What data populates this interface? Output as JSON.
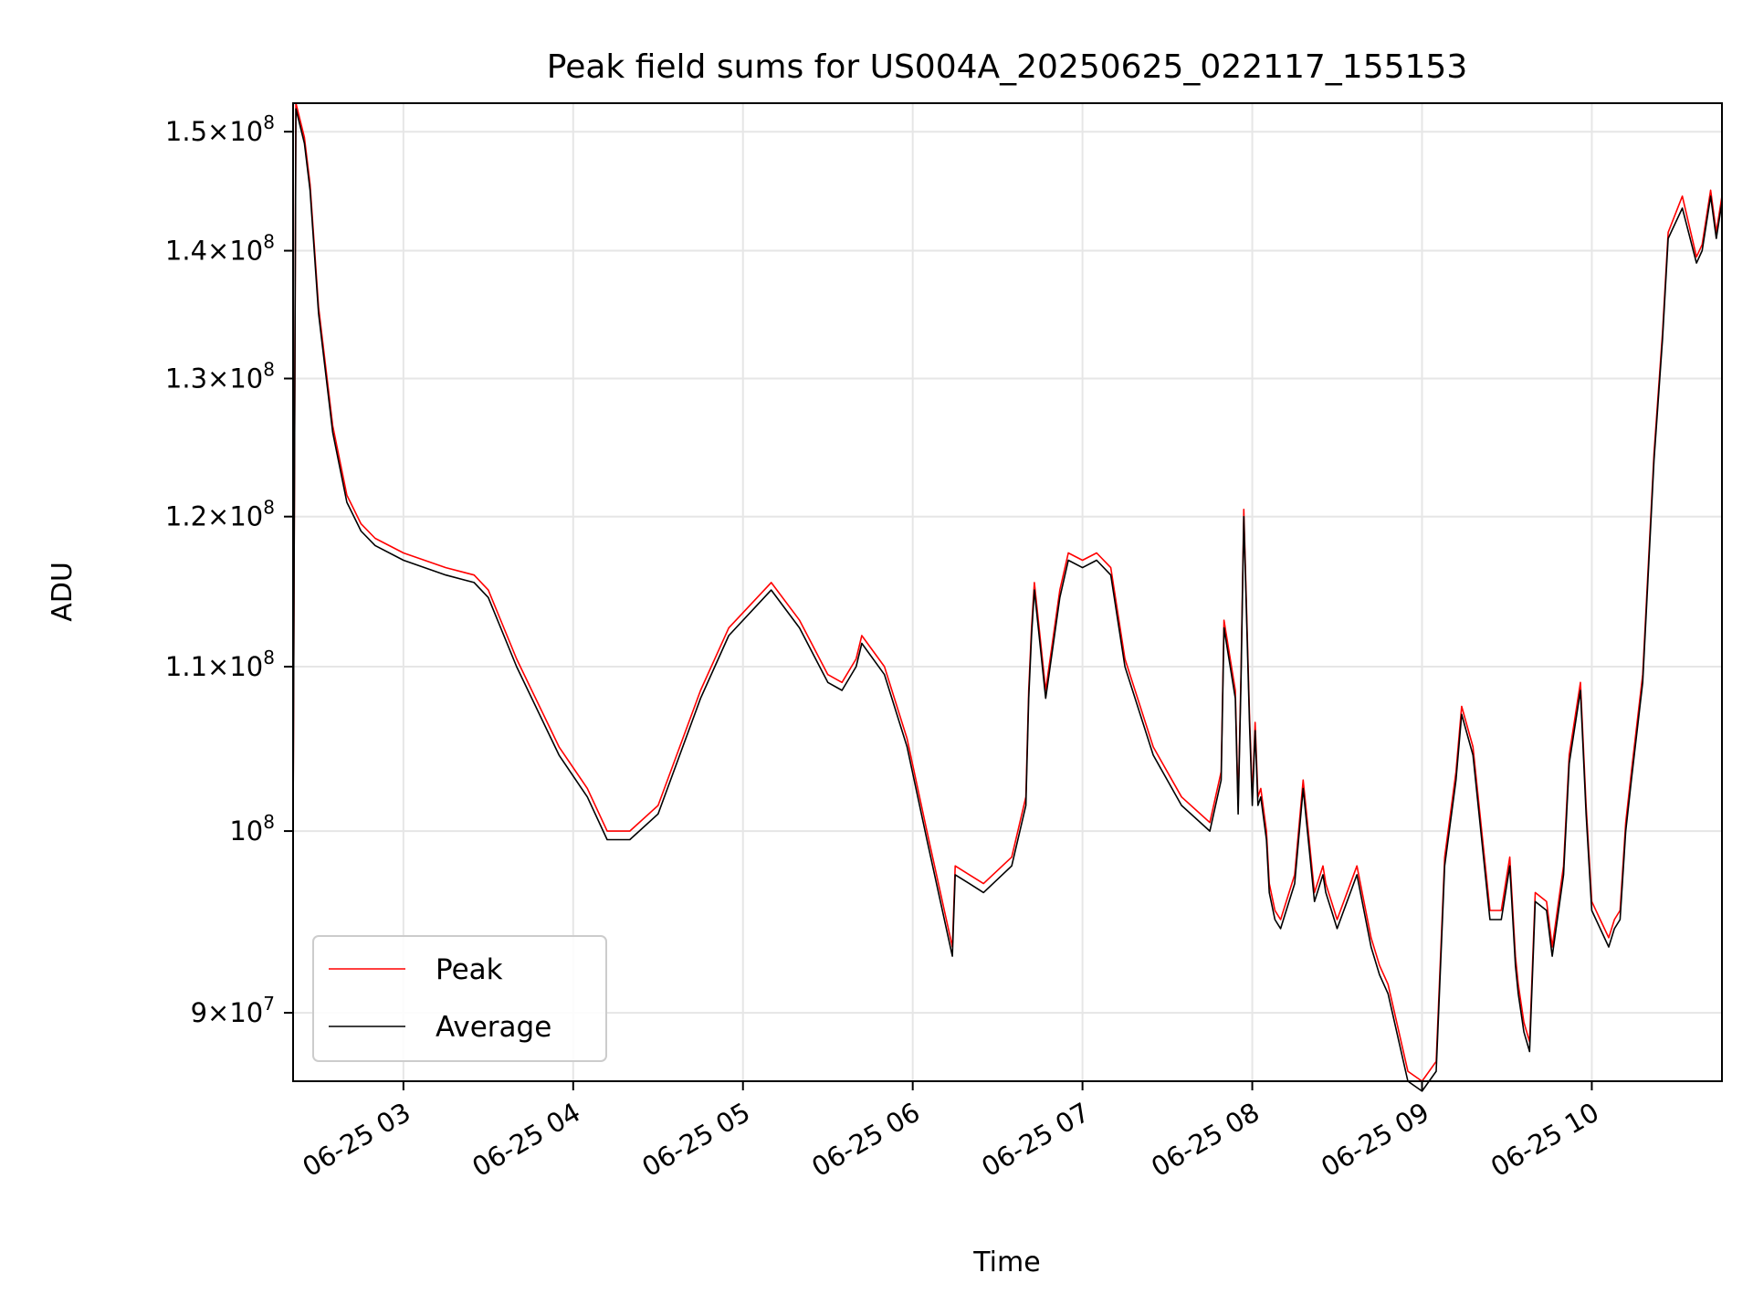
{
  "chart_data": {
    "type": "line",
    "title": "Peak field sums for US004A_20250625_022117_155153",
    "xlabel": "Time",
    "ylabel": "ADU",
    "y_scale": "log",
    "ylim": [
      86500000,
      152500000
    ],
    "xlim": [
      "06-25 02:21",
      "06-25 10:46"
    ],
    "grid": true,
    "legend_position": "lower-left",
    "x_ticks": [
      "06-25 03",
      "06-25 04",
      "06-25 05",
      "06-25 06",
      "06-25 07",
      "06-25 08",
      "06-25 09",
      "06-25 10"
    ],
    "y_ticks": [
      {
        "value": 90000000,
        "mantissa": "9",
        "exponent": "7"
      },
      {
        "value": 100000000,
        "mantissa": "",
        "exponent": "8"
      },
      {
        "value": 110000000,
        "mantissa": "1.1",
        "exponent": "8"
      },
      {
        "value": 120000000,
        "mantissa": "1.2",
        "exponent": "8"
      },
      {
        "value": 130000000,
        "mantissa": "1.3",
        "exponent": "8"
      },
      {
        "value": 140000000,
        "mantissa": "1.4",
        "exponent": "8"
      },
      {
        "value": 150000000,
        "mantissa": "1.5",
        "exponent": "8"
      }
    ],
    "x": [
      "06-25 02:21",
      "06-25 02:22",
      "06-25 02:25",
      "06-25 02:27",
      "06-25 02:30",
      "06-25 02:35",
      "06-25 02:40",
      "06-25 02:45",
      "06-25 02:50",
      "06-25 03:00",
      "06-25 03:15",
      "06-25 03:25",
      "06-25 03:30",
      "06-25 03:40",
      "06-25 03:55",
      "06-25 04:05",
      "06-25 04:12",
      "06-25 04:20",
      "06-25 04:30",
      "06-25 04:45",
      "06-25 04:55",
      "06-25 05:10",
      "06-25 05:20",
      "06-25 05:30",
      "06-25 05:35",
      "06-25 05:40",
      "06-25 05:42",
      "06-25 05:50",
      "06-25 05:58",
      "06-25 06:05",
      "06-25 06:14",
      "06-25 06:15",
      "06-25 06:20",
      "06-25 06:25",
      "06-25 06:35",
      "06-25 06:40",
      "06-25 06:41",
      "06-25 06:42",
      "06-25 06:43",
      "06-25 06:47",
      "06-25 06:52",
      "06-25 06:55",
      "06-25 07:00",
      "06-25 07:05",
      "06-25 07:10",
      "06-25 07:15",
      "06-25 07:25",
      "06-25 07:35",
      "06-25 07:45",
      "06-25 07:49",
      "06-25 07:50",
      "06-25 07:54",
      "06-25 07:55",
      "06-25 07:56",
      "06-25 07:57",
      "06-25 07:59",
      "06-25 08:00",
      "06-25 08:01",
      "06-25 08:02",
      "06-25 08:03",
      "06-25 08:05",
      "06-25 08:06",
      "06-25 08:08",
      "06-25 08:10",
      "06-25 08:15",
      "06-25 08:18",
      "06-25 08:22",
      "06-25 08:25",
      "06-25 08:26",
      "06-25 08:28",
      "06-25 08:30",
      "06-25 08:37",
      "06-25 08:42",
      "06-25 08:45",
      "06-25 08:48",
      "06-25 08:55",
      "06-25 09:00",
      "06-25 09:05",
      "06-25 09:08",
      "06-25 09:12",
      "06-25 09:14",
      "06-25 09:18",
      "06-25 09:24",
      "06-25 09:28",
      "06-25 09:31",
      "06-25 09:33",
      "06-25 09:34",
      "06-25 09:36",
      "06-25 09:38",
      "06-25 09:40",
      "06-25 09:44",
      "06-25 09:46",
      "06-25 09:50",
      "06-25 09:52",
      "06-25 09:56",
      "06-25 09:58",
      "06-25 10:00",
      "06-25 10:06",
      "06-25 10:08",
      "06-25 10:10",
      "06-25 10:12",
      "06-25 10:14",
      "06-25 10:18",
      "06-25 10:22",
      "06-25 10:25",
      "06-25 10:27",
      "06-25 10:32",
      "06-25 10:37",
      "06-25 10:39",
      "06-25 10:42",
      "06-25 10:44",
      "06-25 10:46"
    ],
    "series": [
      {
        "name": "Average",
        "color": "#000000",
        "values": [
          100000000,
          152000000,
          149000000,
          145000000,
          135000000,
          126000000,
          121000000,
          119000000,
          118000000,
          117000000,
          116000000,
          115500000,
          114500000,
          110000000,
          104500000,
          102000000,
          99500000,
          99500000,
          101000000,
          108000000,
          112000000,
          115000000,
          112500000,
          109000000,
          108500000,
          110000000,
          111500000,
          109500000,
          105000000,
          99500000,
          93000000,
          97500000,
          97000000,
          96500000,
          98000000,
          101500000,
          108000000,
          112000000,
          115000000,
          108000000,
          114500000,
          117000000,
          116500000,
          117000000,
          116000000,
          110000000,
          104500000,
          101500000,
          100000000,
          103000000,
          112500000,
          108000000,
          101000000,
          109000000,
          120000000,
          106500000,
          101500000,
          106000000,
          101500000,
          102000000,
          99500000,
          96500000,
          95000000,
          94500000,
          97000000,
          102500000,
          96000000,
          97500000,
          96500000,
          95500000,
          94500000,
          97500000,
          93500000,
          92000000,
          91000000,
          86500000,
          86000000,
          87000000,
          98000000,
          103000000,
          107000000,
          104500000,
          95000000,
          95000000,
          98000000,
          92500000,
          91000000,
          89000000,
          88000000,
          96000000,
          95500000,
          93000000,
          97500000,
          104000000,
          108500000,
          101000000,
          95500000,
          93500000,
          94500000,
          95000000,
          100000000,
          103000000,
          109000000,
          124000000,
          133000000,
          141000000,
          143500000,
          139000000,
          140000000,
          144500000,
          141000000,
          144000000
        ]
      },
      {
        "name": "Peak",
        "color": "#ff0000",
        "values": [
          100000000,
          152500000,
          149500000,
          145500000,
          135500000,
          126500000,
          121500000,
          119500000,
          118500000,
          117500000,
          116500000,
          116000000,
          115000000,
          110500000,
          105000000,
          102500000,
          100000000,
          100000000,
          101500000,
          108500000,
          112500000,
          115500000,
          113000000,
          109500000,
          109000000,
          110500000,
          112000000,
          110000000,
          105500000,
          100000000,
          93500000,
          98000000,
          97500000,
          97000000,
          98500000,
          102000000,
          108500000,
          112500000,
          115500000,
          108500000,
          115000000,
          117500000,
          117000000,
          117500000,
          116500000,
          110500000,
          105000000,
          102000000,
          100500000,
          103500000,
          113000000,
          108500000,
          101500000,
          109500000,
          120500000,
          107000000,
          102000000,
          106500000,
          102000000,
          102500000,
          100000000,
          97000000,
          95500000,
          95000000,
          97500000,
          103000000,
          96500000,
          98000000,
          97000000,
          96000000,
          95000000,
          98000000,
          94000000,
          92500000,
          91500000,
          87000000,
          86500000,
          87500000,
          98500000,
          103500000,
          107500000,
          105000000,
          95500000,
          95500000,
          98500000,
          93000000,
          91500000,
          89500000,
          88500000,
          96500000,
          96000000,
          93500000,
          98000000,
          104500000,
          109000000,
          101500000,
          96000000,
          94000000,
          95000000,
          95500000,
          100500000,
          103500000,
          109500000,
          124500000,
          133500000,
          141500000,
          144500000,
          139500000,
          140500000,
          145000000,
          141500000,
          144500000
        ]
      }
    ]
  }
}
